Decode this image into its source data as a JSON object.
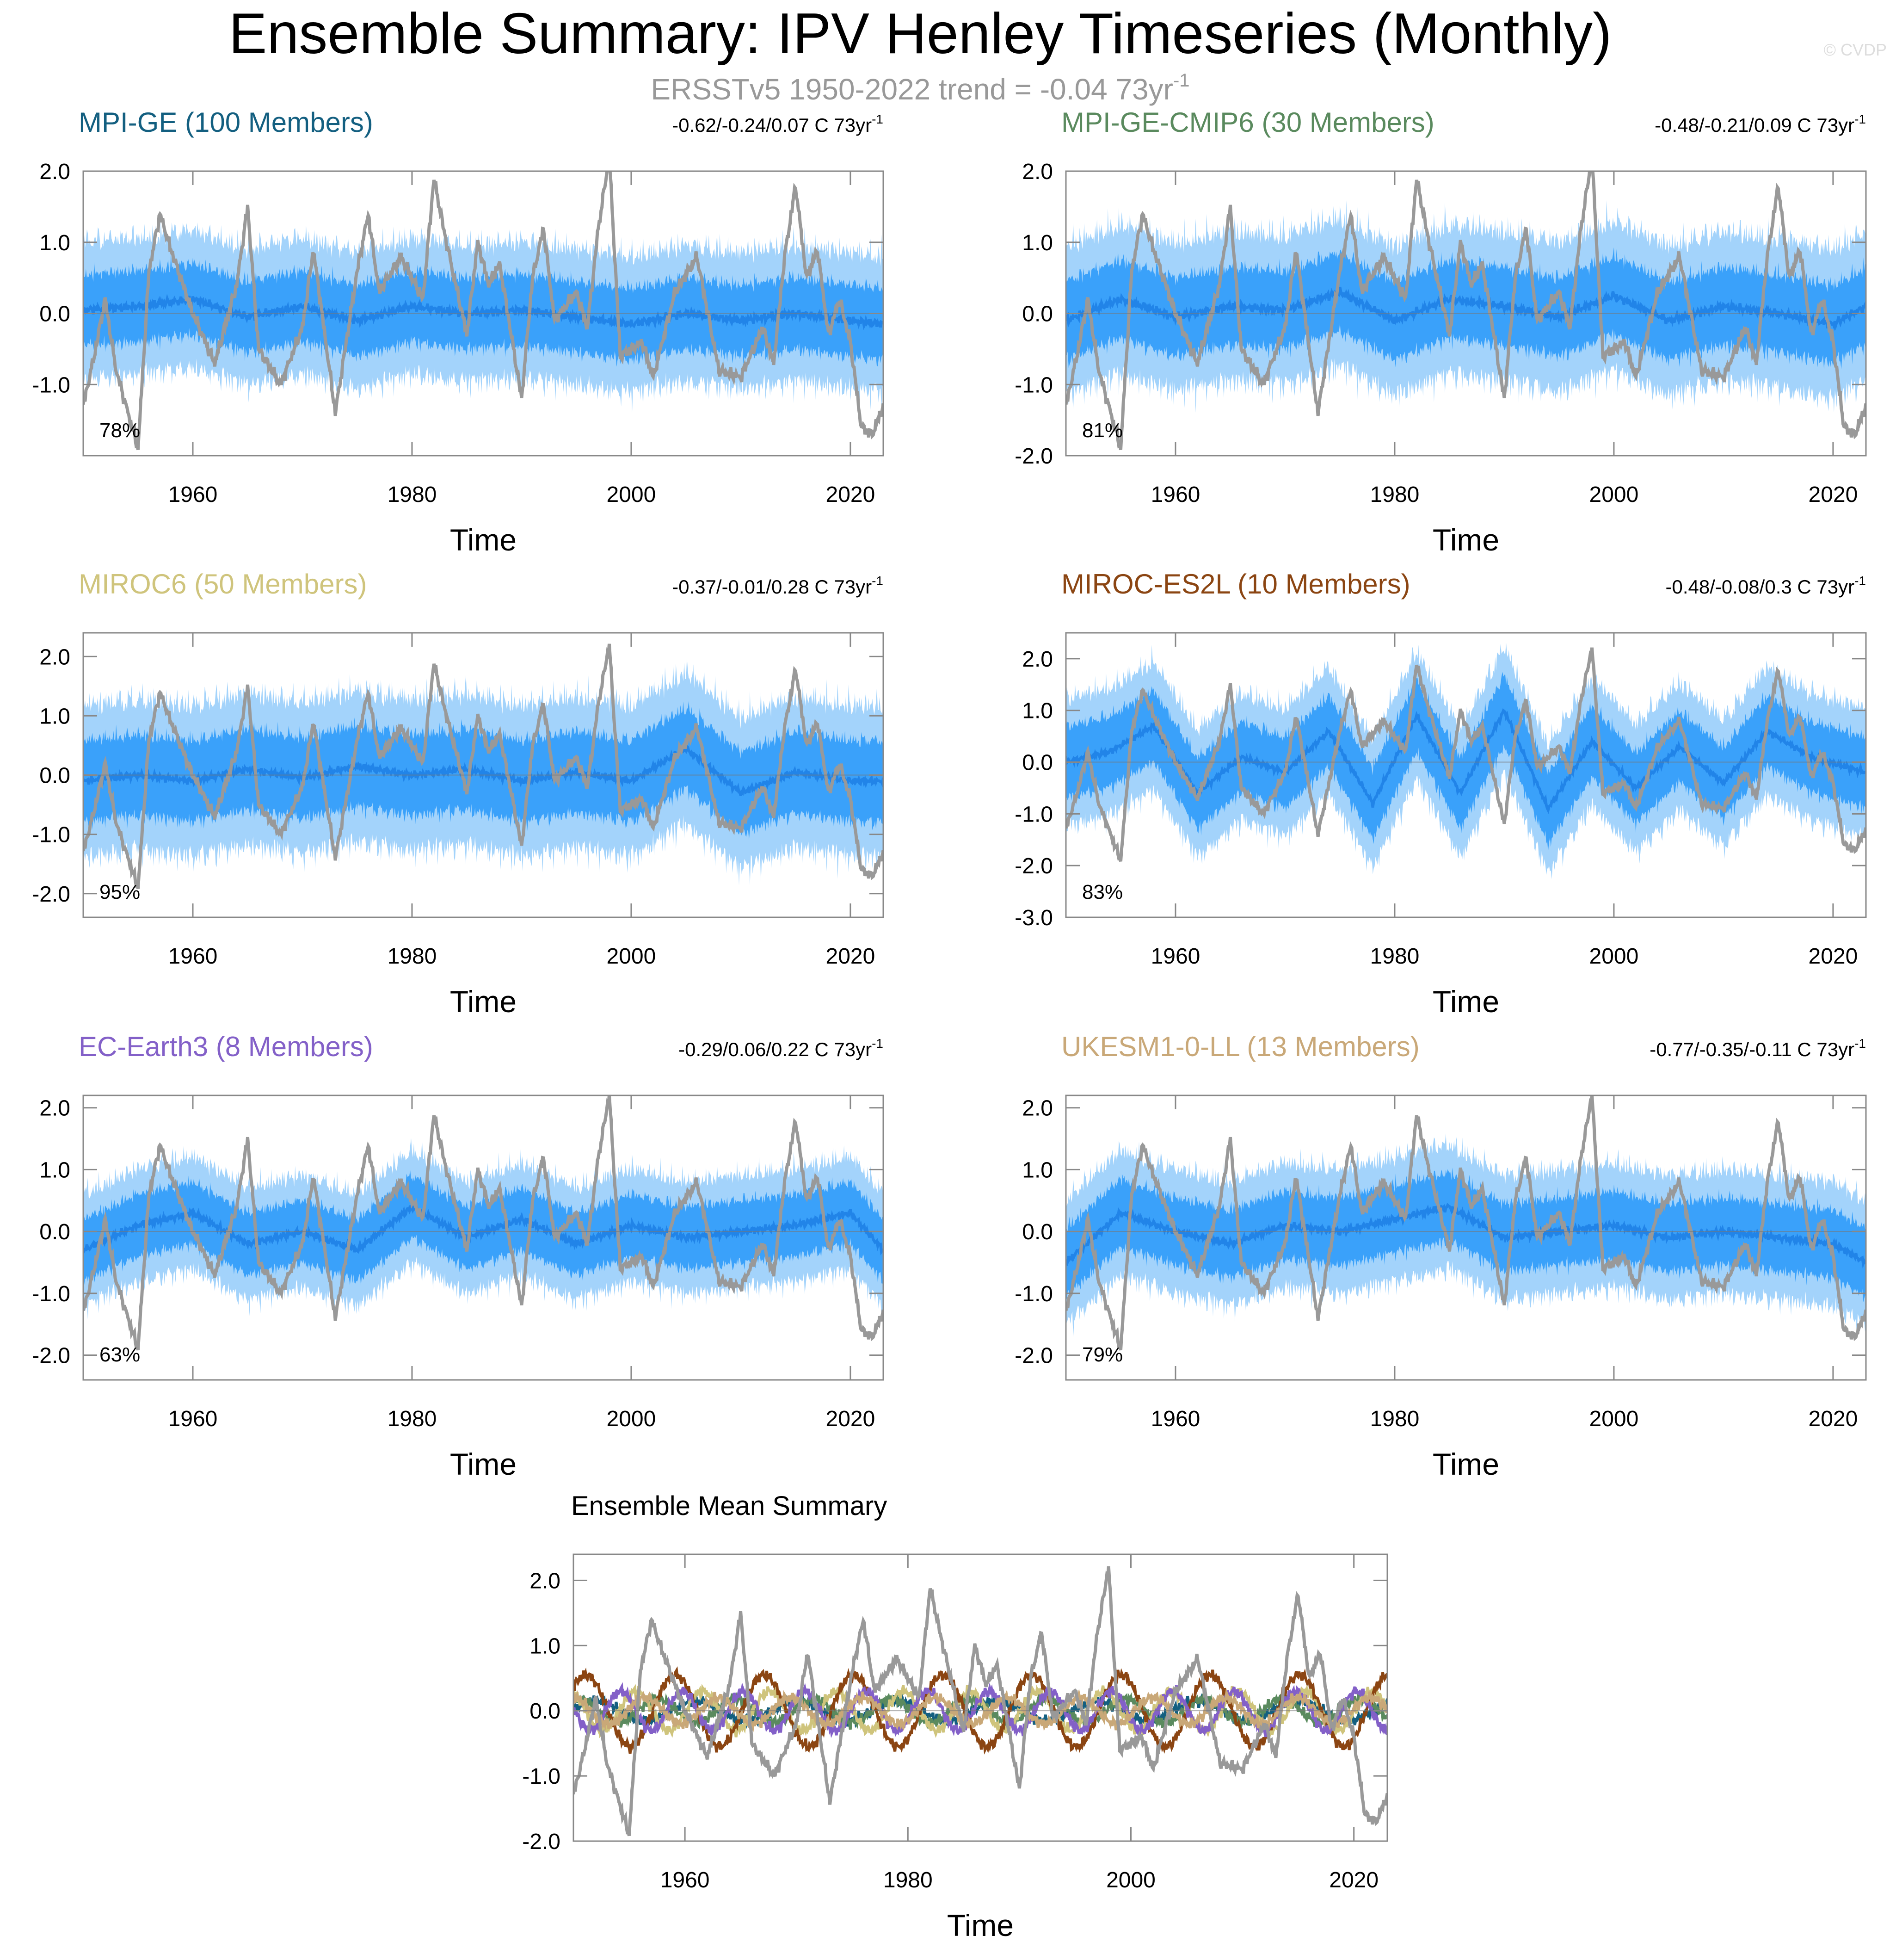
{
  "page": {
    "title": "Ensemble Summary: IPV Henley Timeseries (Monthly)",
    "subtitle": "ERSSTv5 1950-2022 trend = -0.04 73yr",
    "subtitle_sup": "-1",
    "watermark": "© CVDP"
  },
  "colors": {
    "obs": "#999999",
    "spread_outer": "#a3d3fb",
    "spread_inner": "#3aa1fa",
    "ens_mean": "#2184e8",
    "zero_line": "#777777"
  },
  "chart_data": [
    {
      "type": "area",
      "title": "MPI-GE (100 Members)",
      "title_color": "#135f80",
      "trend": "-0.62/-0.24/0.07 C 73yr",
      "trend_sup": "-1",
      "pct": "78%",
      "xlabel": "Time",
      "xlim": [
        1950,
        2023
      ],
      "ylim": [
        -2.0,
        2.0
      ],
      "xticks": [
        "1960",
        "1980",
        "2000",
        "2020"
      ],
      "yticks": [
        "2.0",
        "1.0",
        "0.0",
        "-1.0"
      ],
      "spread": {
        "inner_halfwidth": 0.55,
        "outer_halfwidth": 1.05
      },
      "ens_mean": {
        "x": [
          1950,
          1955,
          1960,
          1965,
          1970,
          1975,
          1980,
          1985,
          1990,
          1995,
          2000,
          2005,
          2010,
          2015,
          2020,
          2023
        ],
        "y": [
          0.05,
          0.1,
          0.2,
          -0.05,
          0.1,
          -0.1,
          0.1,
          0.0,
          0.05,
          -0.05,
          -0.15,
          0.0,
          -0.1,
          0.0,
          -0.1,
          -0.15
        ]
      }
    },
    {
      "type": "area",
      "title": "MPI-GE-CMIP6 (30 Members)",
      "title_color": "#5a8a5e",
      "trend": "-0.48/-0.21/0.09 C 73yr",
      "trend_sup": "-1",
      "pct": "81%",
      "xlabel": "Time",
      "xlim": [
        1950,
        2023
      ],
      "ylim": [
        -2.0,
        2.0
      ],
      "xticks": [
        "1960",
        "1980",
        "2000",
        "2020"
      ],
      "yticks": [
        "2.0",
        "1.0",
        "0.0",
        "-1.0",
        "-2.0"
      ],
      "spread": {
        "inner_halfwidth": 0.6,
        "outer_halfwidth": 1.15
      },
      "ens_mean": {
        "x": [
          1950,
          1955,
          1960,
          1965,
          1970,
          1975,
          1980,
          1985,
          1990,
          1995,
          2000,
          2005,
          2010,
          2015,
          2020,
          2023
        ],
        "y": [
          -0.1,
          0.2,
          -0.05,
          0.1,
          0.05,
          0.3,
          -0.1,
          0.2,
          0.1,
          -0.05,
          0.25,
          -0.1,
          0.1,
          0.0,
          -0.15,
          0.1
        ]
      }
    },
    {
      "type": "area",
      "title": "MIROC6 (50 Members)",
      "title_color": "#cfc47c",
      "trend": "-0.37/-0.01/0.28 C 73yr",
      "trend_sup": "-1",
      "pct": "95%",
      "xlabel": "Time",
      "xlim": [
        1950,
        2023
      ],
      "ylim": [
        -2.4,
        2.4
      ],
      "xticks": [
        "1960",
        "1980",
        "2000",
        "2020"
      ],
      "yticks": [
        "2.0",
        "1.0",
        "0.0",
        "-1.0",
        "-2.0"
      ],
      "spread": {
        "inner_halfwidth": 0.75,
        "outer_halfwidth": 1.4
      },
      "ens_mean": {
        "x": [
          1950,
          1955,
          1960,
          1965,
          1970,
          1975,
          1980,
          1985,
          1990,
          1995,
          2000,
          2005,
          2010,
          2015,
          2020,
          2023
        ],
        "y": [
          -0.1,
          0.0,
          -0.1,
          0.1,
          -0.05,
          0.15,
          0.0,
          0.1,
          -0.1,
          0.05,
          -0.1,
          0.45,
          -0.3,
          0.05,
          -0.1,
          -0.1
        ]
      }
    },
    {
      "type": "area",
      "title": "MIROC-ES2L (10 Members)",
      "title_color": "#8b4512",
      "trend": "-0.48/-0.08/0.3 C 73yr",
      "trend_sup": "-1",
      "pct": "83%",
      "xlabel": "Time",
      "xlim": [
        1950,
        2023
      ],
      "ylim": [
        -3.0,
        2.5
      ],
      "xticks": [
        "1960",
        "1980",
        "2000",
        "2020"
      ],
      "yticks": [
        "2.0",
        "1.0",
        "0.0",
        "-1.0",
        "-2.0",
        "-3.0"
      ],
      "spread": {
        "inner_halfwidth": 0.75,
        "outer_halfwidth": 1.35
      },
      "ens_mean": {
        "x": [
          1950,
          1954,
          1958,
          1962,
          1966,
          1970,
          1974,
          1978,
          1982,
          1986,
          1990,
          1994,
          1998,
          2002,
          2006,
          2010,
          2014,
          2018,
          2023
        ],
        "y": [
          0.0,
          0.2,
          0.7,
          -0.6,
          0.1,
          -0.2,
          0.6,
          -0.8,
          0.9,
          -0.6,
          1.0,
          -0.9,
          0.4,
          -0.5,
          0.3,
          -0.4,
          0.6,
          0.1,
          -0.2
        ]
      }
    },
    {
      "type": "area",
      "title": "EC-Earth3 (8 Members)",
      "title_color": "#8360c8",
      "trend": "-0.29/0.06/0.22 C 73yr",
      "trend_sup": "-1",
      "pct": "63%",
      "xlabel": "Time",
      "xlim": [
        1950,
        2023
      ],
      "ylim": [
        -2.4,
        2.2
      ],
      "xticks": [
        "1960",
        "1980",
        "2000",
        "2020"
      ],
      "yticks": [
        "2.0",
        "1.0",
        "0.0",
        "-1.0",
        "-2.0"
      ],
      "spread": {
        "inner_halfwidth": 0.55,
        "outer_halfwidth": 1.0
      },
      "ens_mean": {
        "x": [
          1950,
          1955,
          1960,
          1965,
          1970,
          1975,
          1980,
          1985,
          1990,
          1995,
          2000,
          2005,
          2010,
          2015,
          2020,
          2023
        ],
        "y": [
          -0.3,
          0.1,
          0.3,
          -0.2,
          0.0,
          -0.3,
          0.4,
          -0.1,
          0.2,
          -0.2,
          0.1,
          -0.1,
          0.0,
          0.1,
          0.3,
          -0.3
        ]
      }
    },
    {
      "type": "area",
      "title": "UKESM1-0-LL (13 Members)",
      "title_color": "#c9a878",
      "trend": "-0.77/-0.35/-0.11 C 73yr",
      "trend_sup": "-1",
      "pct": "79%",
      "xlabel": "Time",
      "xlim": [
        1950,
        2023
      ],
      "ylim": [
        -2.4,
        2.2
      ],
      "xticks": [
        "1960",
        "1980",
        "2000",
        "2020"
      ],
      "yticks": [
        "2.0",
        "1.0",
        "0.0",
        "-1.0",
        "-2.0"
      ],
      "spread": {
        "inner_halfwidth": 0.6,
        "outer_halfwidth": 1.1
      },
      "ens_mean": {
        "x": [
          1950,
          1955,
          1960,
          1965,
          1970,
          1975,
          1980,
          1985,
          1990,
          1995,
          2000,
          2005,
          2010,
          2015,
          2020,
          2023
        ],
        "y": [
          -0.5,
          0.3,
          0.0,
          -0.2,
          0.1,
          0.0,
          0.2,
          0.4,
          -0.1,
          0.0,
          0.1,
          -0.1,
          0.0,
          -0.1,
          -0.2,
          -0.5
        ]
      }
    },
    {
      "type": "line",
      "title": "Ensemble Mean Summary",
      "title_color": "#000000",
      "xlabel": "Time",
      "xlim": [
        1950,
        2023
      ],
      "ylim": [
        -2.0,
        2.4
      ],
      "xticks": [
        "1960",
        "1980",
        "2000",
        "2020"
      ],
      "yticks": [
        "2.0",
        "1.0",
        "0.0",
        "-1.0",
        "-2.0"
      ],
      "series": [
        {
          "color": "#135f80",
          "amp": 0.15,
          "period": 9,
          "phase": 0.2
        },
        {
          "color": "#5a8a5e",
          "amp": 0.18,
          "period": 7,
          "phase": 1.1
        },
        {
          "color": "#cfc47c",
          "amp": 0.3,
          "period": 6,
          "phase": 2.0
        },
        {
          "color": "#8b4512",
          "amp": 0.55,
          "period": 8,
          "phase": 0.7
        },
        {
          "color": "#8360c8",
          "amp": 0.3,
          "period": 5.5,
          "phase": 3.0
        },
        {
          "color": "#c9a878",
          "amp": 0.2,
          "period": 6.5,
          "phase": 1.6
        }
      ]
    }
  ],
  "observations": {
    "name": "ERSSTv5",
    "x": [
      1950,
      1951,
      1952,
      1953,
      1955,
      1956,
      1957,
      1958,
      1960,
      1962,
      1964,
      1965,
      1966,
      1968,
      1970,
      1971,
      1973,
      1975,
      1976,
      1977,
      1979,
      1981,
      1982,
      1983,
      1985,
      1986,
      1987,
      1988,
      1990,
      1991,
      1992,
      1993,
      1995,
      1996,
      1997,
      1998,
      1999,
      2001,
      2002,
      2004,
      2006,
      2008,
      2010,
      2012,
      2013,
      2014,
      2015,
      2016,
      2017,
      2018,
      2019,
      2020,
      2021,
      2022,
      2023
    ],
    "y": [
      -1.3,
      -0.6,
      0.2,
      -0.8,
      -1.9,
      0.6,
      1.4,
      0.9,
      0.0,
      -0.7,
      0.4,
      1.5,
      -0.5,
      -1.0,
      -0.2,
      0.9,
      -1.4,
      0.6,
      1.4,
      0.3,
      0.8,
      0.2,
      1.9,
      1.1,
      -0.3,
      1.0,
      0.4,
      0.7,
      -1.2,
      0.5,
      1.2,
      -0.1,
      0.3,
      -0.2,
      1.2,
      2.2,
      -0.6,
      -0.4,
      -0.9,
      0.3,
      0.8,
      -0.8,
      -0.9,
      -0.2,
      -0.7,
      0.8,
      1.8,
      0.5,
      0.9,
      -0.3,
      0.2,
      -0.4,
      -1.6,
      -1.7,
      -1.3
    ]
  }
}
